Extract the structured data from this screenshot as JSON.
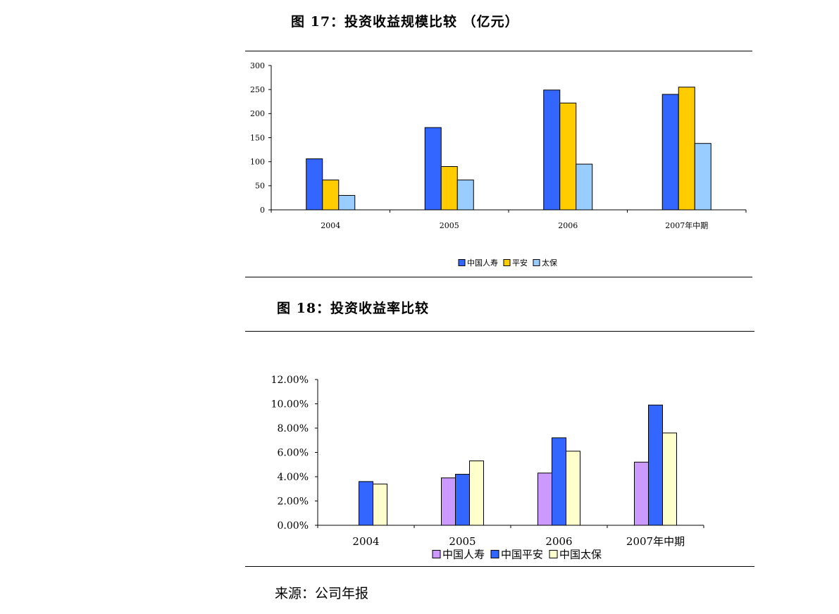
{
  "figure17": {
    "title": "图 17：投资收益规模比较 （亿元）"
  },
  "figure18": {
    "title": "图 18：投资收益率比较"
  },
  "source": "来源：公司年报",
  "chart_data": [
    {
      "type": "bar",
      "categories": [
        "2004",
        "2005",
        "2006",
        "2007年中期"
      ],
      "series": [
        {
          "name": "中国人寿",
          "values": [
            106,
            171,
            249,
            240
          ],
          "color": "#3366ff"
        },
        {
          "name": "平安",
          "values": [
            62,
            90,
            222,
            255
          ],
          "color": "#ffcc00"
        },
        {
          "name": "太保",
          "values": [
            30,
            62,
            95,
            138
          ],
          "color": "#99ccff"
        }
      ],
      "xlabel": "",
      "ylabel": "",
      "ylim": [
        0,
        300
      ],
      "yticks": [
        0,
        50,
        100,
        150,
        200,
        250,
        300
      ],
      "ytick_labels": [
        "0",
        "50",
        "100",
        "150",
        "200",
        "250",
        "300"
      ],
      "legend_position": "bottom",
      "grid": false
    },
    {
      "type": "bar",
      "categories": [
        "2004",
        "2005",
        "2006",
        "2007年中期"
      ],
      "series": [
        {
          "name": "中国人寿",
          "values": [
            null,
            3.9,
            4.3,
            5.2
          ],
          "color": "#cc99ff"
        },
        {
          "name": "中国平安",
          "values": [
            3.6,
            4.2,
            7.2,
            9.9
          ],
          "color": "#3366ff"
        },
        {
          "name": "中国太保",
          "values": [
            3.4,
            5.3,
            6.1,
            7.6
          ],
          "color": "#ffffcc"
        }
      ],
      "xlabel": "",
      "ylabel": "",
      "ylim": [
        0,
        12
      ],
      "yticks": [
        0,
        2,
        4,
        6,
        8,
        10,
        12
      ],
      "ytick_labels": [
        "0.00%",
        "2.00%",
        "4.00%",
        "6.00%",
        "8.00%",
        "10.00%",
        "12.00%"
      ],
      "legend_position": "bottom",
      "grid": false
    }
  ]
}
